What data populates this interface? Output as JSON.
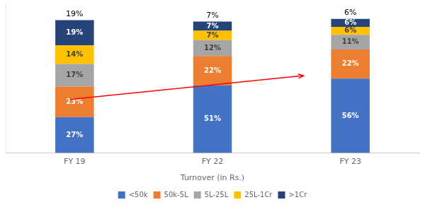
{
  "chart_data": {
    "type": "bar",
    "stacked": true,
    "x_label": "Turnover (in Rs.)",
    "categories": [
      "FY 19",
      "FY 22",
      "FY 23"
    ],
    "series": [
      {
        "name": "<50k",
        "color": "#4472C4",
        "values": [
          27,
          51,
          56
        ],
        "value_labels": [
          "27%",
          "51%",
          "56%"
        ]
      },
      {
        "name": "50k-5L",
        "color": "#ED7D31",
        "values": [
          23,
          22,
          22
        ],
        "value_labels": [
          "23%",
          "22%",
          "22%"
        ]
      },
      {
        "name": "5L-25L",
        "color": "#A5A5A5",
        "values": [
          17,
          12,
          11
        ],
        "value_labels": [
          "17%",
          "12%",
          "11%"
        ]
      },
      {
        "name": "25L-1Cr",
        "color": "#FFC000",
        "values": [
          14,
          7,
          6
        ],
        "value_labels": [
          "14%",
          "7%",
          "6%"
        ]
      },
      {
        "name": ">1Cr",
        "color": "#264478",
        "values": [
          19,
          7,
          6
        ],
        "value_labels": [
          "19%",
          "7%",
          "6%"
        ]
      }
    ],
    "annotations": [
      "19%",
      "7%",
      "6%"
    ],
    "ylim": [
      0,
      112
    ],
    "grid": false,
    "legend": "bottom",
    "data_labels": true,
    "tick_labels": "x"
  }
}
